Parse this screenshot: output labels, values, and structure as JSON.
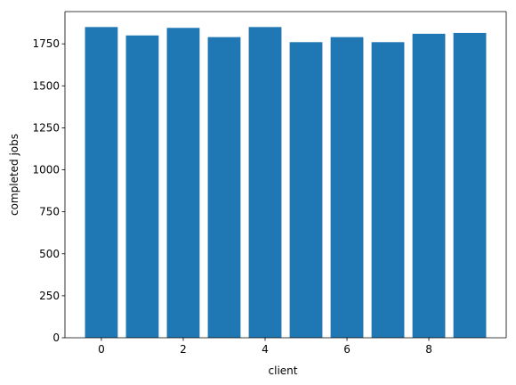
{
  "chart_data": {
    "type": "bar",
    "xlabel": "client",
    "ylabel": "completed jobs",
    "x": [
      0,
      1,
      2,
      3,
      4,
      5,
      6,
      7,
      8,
      9
    ],
    "values": [
      1850,
      1800,
      1845,
      1790,
      1850,
      1760,
      1790,
      1760,
      1810,
      1815
    ],
    "color": "#1f77b4",
    "xlim": [
      -0.89,
      9.89
    ],
    "xticks": [
      0,
      2,
      4,
      6,
      8
    ],
    "ylim": [
      0,
      1942
    ],
    "yticks": [
      0,
      250,
      500,
      750,
      1000,
      1250,
      1500,
      1750
    ],
    "bar_width": 0.8,
    "grid": false
  }
}
